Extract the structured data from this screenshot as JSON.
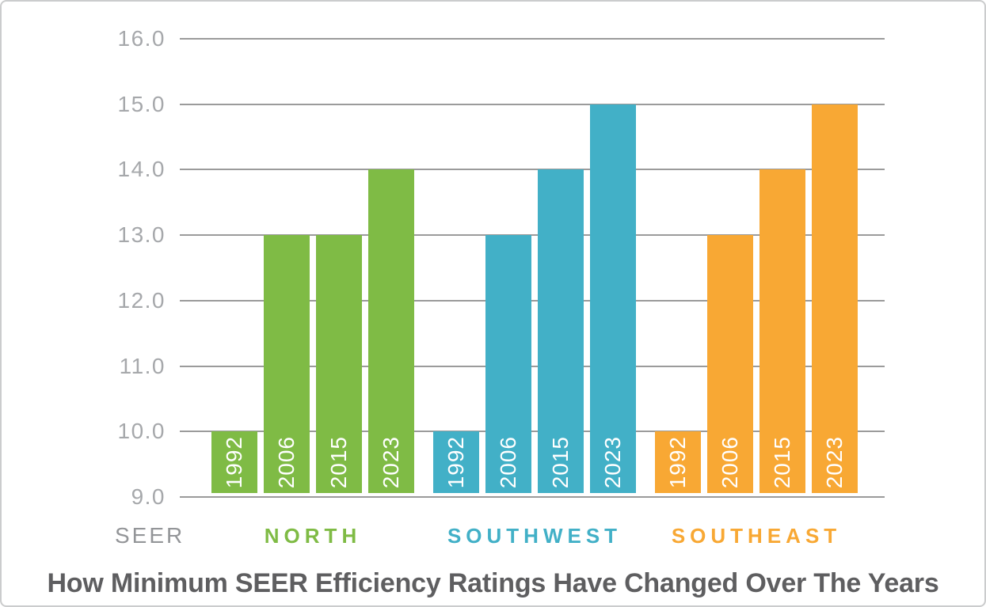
{
  "frame": {
    "background": "#FFFFFF",
    "border_color": "#CBCCCD"
  },
  "chart_data": {
    "type": "bar",
    "title": "How Minimum SEER Efficiency Ratings Have Changed Over The Years",
    "title_color": "#5E5E60",
    "axis_label": "SEER",
    "axis_label_color": "#939598",
    "tick_color": "#A6A8AB",
    "gridline_color": "#9B9B9B",
    "bar_label_color": "#FFFFFF",
    "grid": true,
    "legend_position": "bottom-group-labels",
    "ymin": 9.0,
    "ymax": 16.0,
    "ytick_step": 1.0,
    "yticks": [
      "16.0",
      "15.0",
      "14.0",
      "13.0",
      "12.0",
      "11.0",
      "10.0",
      "9.0"
    ],
    "categories": [
      "1992",
      "2006",
      "2015",
      "2023"
    ],
    "series": [
      {
        "name": "NORTH",
        "color": "#7FBB45",
        "values": [
          10.0,
          13.0,
          13.0,
          14.0
        ]
      },
      {
        "name": "SOUTHWEST",
        "color": "#42B0C7",
        "values": [
          10.0,
          13.0,
          14.0,
          15.0
        ]
      },
      {
        "name": "SOUTHEAST",
        "color": "#F8A834",
        "values": [
          10.0,
          13.0,
          14.0,
          15.0
        ]
      }
    ]
  }
}
